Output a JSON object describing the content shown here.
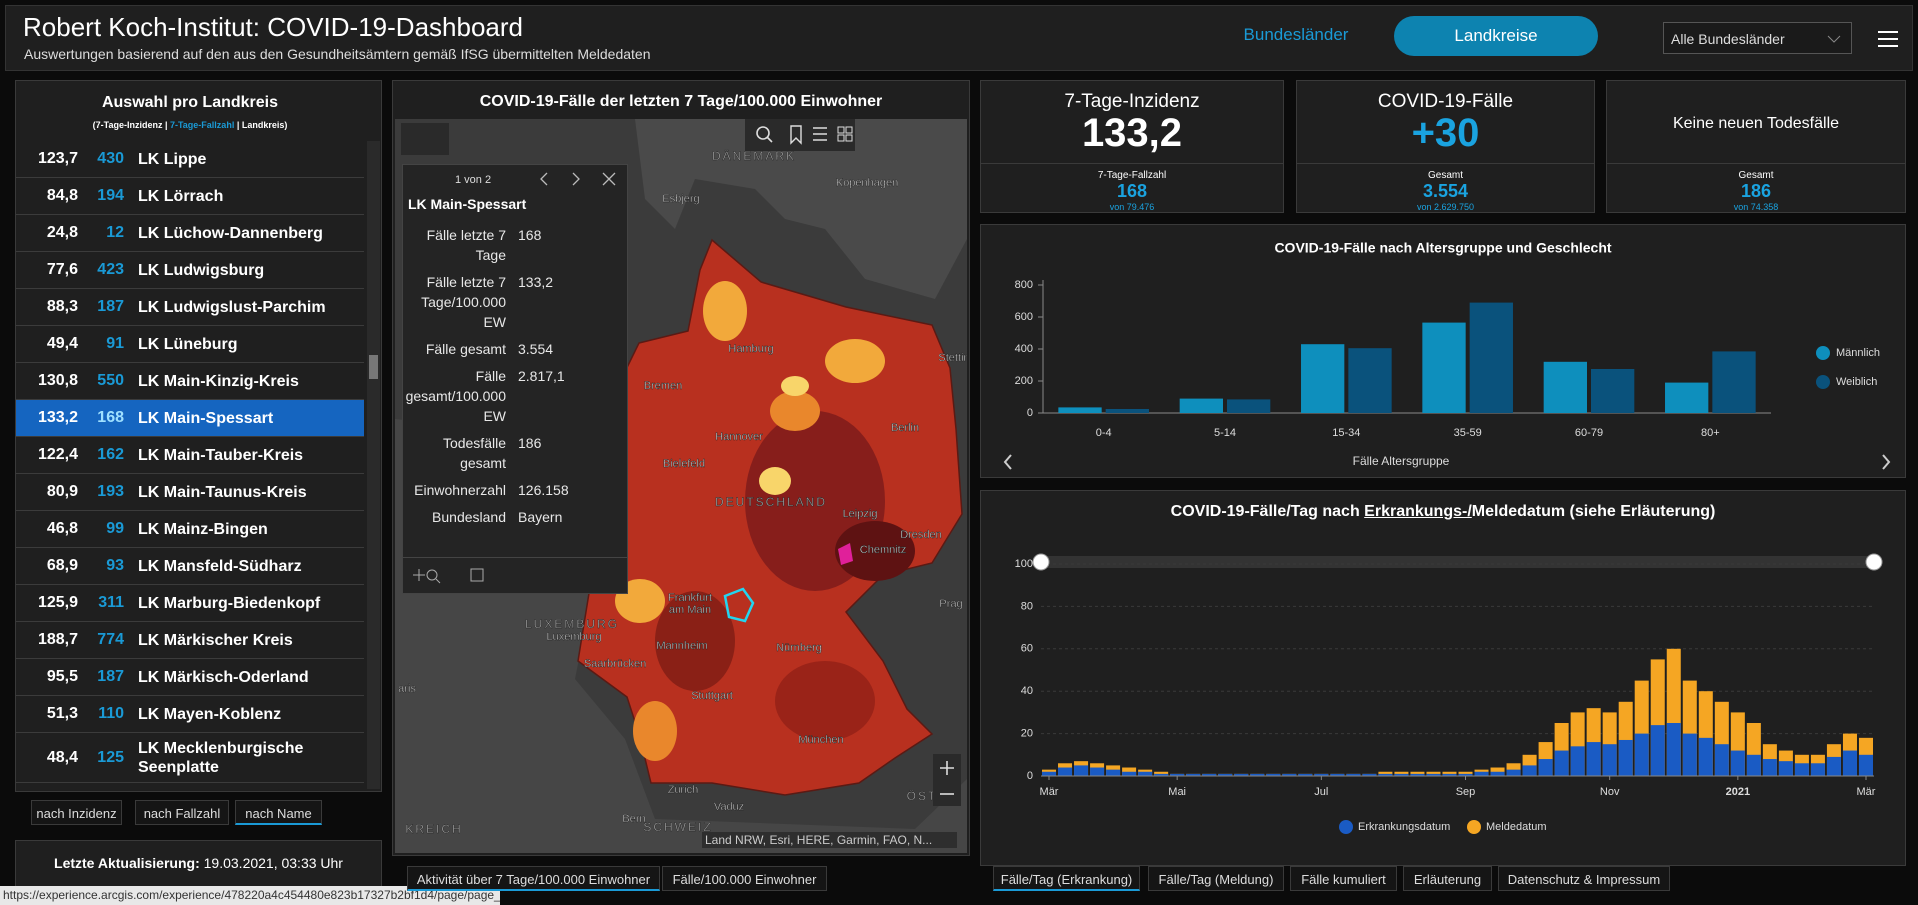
{
  "header": {
    "title": "Robert Koch-Institut: COVID-19-Dashboard",
    "subtitle": "Auswertungen basierend auf den aus den Gesundheitsämtern gemäß IfSG übermittelten Meldedaten",
    "tabs": [
      "Bundesländer",
      "Landkreise"
    ],
    "dropdown": "Alle Bundesländer"
  },
  "list": {
    "title": "Auswahl pro Landkreis",
    "legend": [
      "(7-Tage-Inzidenz | ",
      "7-Tage-Fallzahl",
      " | Landkreis)"
    ],
    "rows": [
      [
        "123,7",
        "430",
        "LK Lippe"
      ],
      [
        "84,8",
        "194",
        "LK Lörrach"
      ],
      [
        "24,8",
        "12",
        "LK Lüchow-Dannenberg"
      ],
      [
        "77,6",
        "423",
        "LK Ludwigsburg"
      ],
      [
        "88,3",
        "187",
        "LK Ludwigslust-Parchim"
      ],
      [
        "49,4",
        "91",
        "LK Lüneburg"
      ],
      [
        "130,8",
        "550",
        "LK Main-Kinzig-Kreis"
      ],
      [
        "133,2",
        "168",
        "LK Main-Spessart"
      ],
      [
        "122,4",
        "162",
        "LK Main-Tauber-Kreis"
      ],
      [
        "80,9",
        "193",
        "LK Main-Taunus-Kreis"
      ],
      [
        "46,8",
        "99",
        "LK Mainz-Bingen"
      ],
      [
        "68,9",
        "93",
        "LK Mansfeld-Südharz"
      ],
      [
        "125,9",
        "311",
        "LK Marburg-Biedenkopf"
      ],
      [
        "188,7",
        "774",
        "LK Märkischer Kreis"
      ],
      [
        "95,5",
        "187",
        "LK Märkisch-Oderland"
      ],
      [
        "51,3",
        "110",
        "LK Mayen-Koblenz"
      ],
      [
        "48,4",
        "125",
        "LK Mecklenburgische Seenplatte"
      ]
    ],
    "sort": [
      "nach Inzidenz",
      "nach Fallzahl",
      "nach Name"
    ],
    "update_label": "Letzte Aktualisierung:",
    "update_value": "19.03.2021, 03:33 Uhr"
  },
  "map": {
    "title": "COVID-19-Fälle der letzten 7 Tage/100.000 Einwohner",
    "popup": {
      "pager": "1 von 2",
      "name": "LK Main-Spessart",
      "fields": [
        [
          "Fälle letzte 7 Tage",
          "168"
        ],
        [
          "Fälle letzte 7 Tage/100.000 EW",
          "133,2"
        ],
        [
          "Fälle gesamt",
          "3.554"
        ],
        [
          "Fälle gesamt/100.000 EW",
          "2.817,1"
        ],
        [
          "Todesfälle gesamt",
          "186"
        ],
        [
          "Einwohnerzahl",
          "126.158"
        ],
        [
          "Bundesland",
          "Bayern"
        ]
      ]
    },
    "places": [
      "Katteg",
      "DÄNEMARK",
      "Kopenhagen",
      "Esbjerg",
      "Hamburg",
      "Stettin",
      "Bremen",
      "Berlin",
      "Hannover",
      "Bielefeld",
      "DEUTSCHLAND",
      "Leipzig",
      "Dresden",
      "Chemnitz",
      "Frankfurt",
      "am Main",
      "Prag",
      "LUXEMBURG",
      "Luxemburg",
      "Mannheim",
      "Nürnberg",
      "Saarbrücken",
      "aris",
      "Stuttgart",
      "München",
      "Zürich",
      "Vaduz",
      "ÖSTE",
      "Bern",
      "SCHWEIZ",
      "KREICH"
    ],
    "attribution": "Land NRW, Esri, HERE, Garmin, FAO, N...",
    "tabs": [
      "Aktivität über 7 Tage/100.000 Einwohner",
      "Fälle/100.000 Einwohner"
    ]
  },
  "kpis": [
    {
      "title": "7-Tage-Inzidenz",
      "value": "133,2",
      "sub_label": "7-Tage-Fallzahl",
      "sub_value": "168",
      "sub_of": "von 79.476"
    },
    {
      "title": "COVID-19-Fälle",
      "value": "+30",
      "sub_label": "Gesamt",
      "sub_value": "3.554",
      "sub_of": "von 2.629.750"
    },
    {
      "title": "Keine neuen Todesfälle",
      "sub_label": "Gesamt",
      "sub_value": "186",
      "sub_of": "von 74.358"
    }
  ],
  "chart_data": [
    {
      "type": "bar",
      "title": "COVID-19-Fälle nach Altersgruppe und Geschlecht",
      "x_label": "Fälle Altersgruppe",
      "categories": [
        "0-4",
        "5-14",
        "15-34",
        "35-59",
        "60-79",
        "80+"
      ],
      "series": [
        {
          "name": "Männlich",
          "color": "#0e8fbd",
          "values": [
            35,
            90,
            430,
            565,
            320,
            190
          ]
        },
        {
          "name": "Weiblich",
          "color": "#0a527c",
          "values": [
            25,
            85,
            405,
            690,
            275,
            385
          ]
        }
      ],
      "ylim": [
        0,
        800
      ],
      "yticks": [
        0,
        200,
        400,
        600,
        800
      ],
      "legend": "right"
    },
    {
      "type": "overlay-bar",
      "title": [
        "COVID-19-Fälle/Tag nach ",
        "Erkrankungs-/",
        "Meldedatum (siehe Erläuterung)"
      ],
      "categories": [
        null,
        null,
        null,
        null,
        null,
        null,
        null,
        null,
        null,
        null,
        null,
        null,
        null,
        null,
        null,
        null,
        null,
        null,
        null,
        null,
        null,
        null,
        null,
        null,
        null,
        null,
        null,
        null,
        null,
        null,
        null,
        null,
        null,
        null,
        null,
        null,
        null,
        null,
        null,
        null,
        null,
        null,
        null,
        null,
        null,
        null,
        null,
        null,
        null,
        null,
        null,
        null
      ],
      "series": [
        {
          "name": "Meldedatum",
          "color": "#f5a623",
          "values": [
            3,
            6,
            7,
            6,
            5,
            4,
            3,
            2,
            1,
            1,
            1,
            1,
            1,
            1,
            1,
            1,
            1,
            1,
            1,
            1,
            1,
            2,
            2,
            2,
            2,
            2,
            2,
            3,
            4,
            6,
            10,
            16,
            25,
            30,
            32,
            30,
            35,
            45,
            55,
            60,
            45,
            40,
            35,
            30,
            25,
            15,
            12,
            10,
            10,
            15,
            20,
            18
          ]
        },
        {
          "name": "Erkrankungsdatum",
          "color": "#1a5bc4",
          "values": [
            2,
            4,
            5,
            4,
            3,
            2,
            2,
            1,
            1,
            1,
            1,
            1,
            1,
            1,
            1,
            1,
            1,
            1,
            1,
            1,
            1,
            1,
            1,
            1,
            1,
            1,
            1,
            2,
            2,
            3,
            5,
            8,
            12,
            14,
            16,
            15,
            17,
            20,
            24,
            25,
            20,
            18,
            15,
            12,
            10,
            8,
            7,
            6,
            6,
            9,
            12,
            10
          ]
        }
      ],
      "legend_order": [
        1,
        0
      ],
      "ylim": [
        0,
        100
      ],
      "yticks": [
        0,
        20,
        40,
        60,
        80,
        100
      ],
      "xticks": [
        {
          "value": 0,
          "label": "Mär"
        },
        {
          "value": 8,
          "label": "Mai"
        },
        {
          "value": 17,
          "label": "Jul"
        },
        {
          "value": 26,
          "label": "Sep"
        },
        {
          "value": 35,
          "label": "Nov"
        },
        {
          "value": 43,
          "label": "2021"
        },
        {
          "value": 51,
          "label": "Mär"
        }
      ],
      "grid": true
    }
  ],
  "bottom_tabs": [
    "Fälle/Tag (Erkrankung)",
    "Fälle/Tag (Meldung)",
    "Fälle kumuliert",
    "Erläuterung",
    "Datenschutz & Impressum"
  ],
  "status_url": "https://experience.arcgis.com/experience/478220a4c454480e823b17327b2bf1d4/page/page_0/"
}
